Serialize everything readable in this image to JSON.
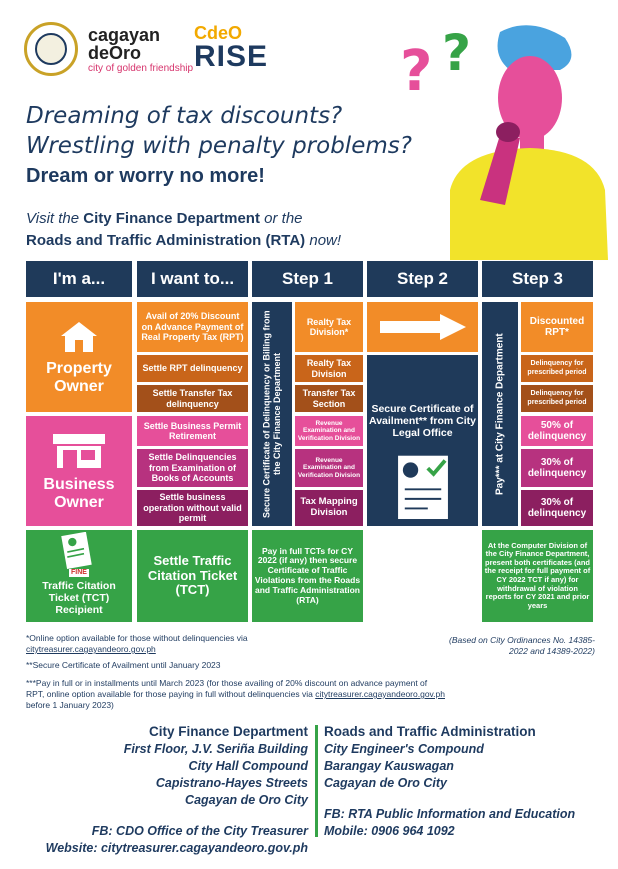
{
  "branding": {
    "cdo_line1": "cagayan",
    "cdo_line2": "deOro",
    "cdo_tagline": "city of golden friendship",
    "rise_top": "CdeO",
    "rise_word": "RISE"
  },
  "headline": {
    "line1": "Dreaming of tax discounts?",
    "line2": "Wrestling with penalty problems?",
    "line3": "Dream or worry no more!"
  },
  "visit": {
    "pre": "Visit the",
    "dept1": "City Finance Department",
    "mid": "or the",
    "dept2": "Roads and Traffic Administration (RTA)",
    "post": "now!"
  },
  "table": {
    "headers": [
      "I'm a...",
      "I want to...",
      "Step 1",
      "Step 2",
      "Step 3"
    ],
    "property": {
      "label": "Property Owner",
      "want": [
        "Avail of 20% Discount on Advance Payment of Real Property Tax (RPT)",
        "Settle RPT delinquency",
        "Settle Transfer Tax delinquency"
      ],
      "step1": [
        "Realty Tax Division*",
        "Realty Tax Division",
        "Transfer Tax Section"
      ],
      "step3": [
        "Discounted RPT*",
        "Delinquency for prescribed period",
        "Delinquency for prescribed period"
      ]
    },
    "business": {
      "label": "Business Owner",
      "want": [
        "Settle Business Permit Retirement",
        "Settle Delinquencies from Examination of Books of Accounts",
        "Settle business operation without valid permit"
      ],
      "step1": [
        "Revenue Examination and Verification Division",
        "Revenue Examination and Verification Division",
        "Tax Mapping Division"
      ],
      "step3": [
        "50% of delinquency",
        "30% of delinquency",
        "30% of delinquency"
      ]
    },
    "step1_vertical": "Secure Certificate of Delinquency or Billing from the City Finance Department",
    "step2_text": "Secure Certificate of Availment** from City Legal Office",
    "step3_vertical": "Pay*** at City Finance Department",
    "tct": {
      "label": "Traffic Citation Ticket (TCT) Recipient",
      "fine": "FINE",
      "want": "Settle Traffic Citation Ticket (TCT)",
      "step1": "Pay in full TCTs for CY 2022 (if any) then secure Certificate of Traffic Violations from the Roads and Traffic Administration (RTA)",
      "step3": "At the Computer Division of the City Finance Department, present both certificates (and the receipt for full payment of CY 2022 TCT if any) for withdrawal of violation reports for CY 2021 and prior years"
    }
  },
  "footnotes": {
    "f1": "*Online option available for those without delinquencies via",
    "f1_link": "citytreasurer.cagayandeoro.gov.ph",
    "ordinance": "(Based on City Ordinances No. 14385-2022 and 14389-2022)",
    "f2": "**Secure Certificate of Availment until January 2023",
    "f3": "***Pay in full or in installments until March 2023 (for those availing of 20% discount on advance payment of RPT, online option available for those paying in full without delinquencies via",
    "f3_link": "citytreasurer.cagayandeoro.gov.ph",
    "f3_end": "before 1 January 2023)"
  },
  "contacts": {
    "left": {
      "title": "City Finance Department",
      "lines": [
        "First Floor, J.V. Seriña Building",
        "City Hall Compound",
        "Capistrano-Hayes Streets",
        "Cagayan de Oro City"
      ],
      "fb": "FB: CDO Office of the City Treasurer",
      "website": "Website: citytreasurer.cagayandeoro.gov.ph"
    },
    "right": {
      "title": "Roads and Traffic Administration",
      "lines": [
        "City Engineer's Compound",
        "Barangay Kauswagan",
        "Cagayan de Oro City"
      ],
      "fb": "FB: RTA Public Information and Education",
      "mobile": "Mobile: 0906 964 1092"
    }
  },
  "colors": {
    "navy": "#1f3a5a",
    "orange": "#f28c28",
    "pink": "#e64f9a",
    "green": "#36a347"
  }
}
